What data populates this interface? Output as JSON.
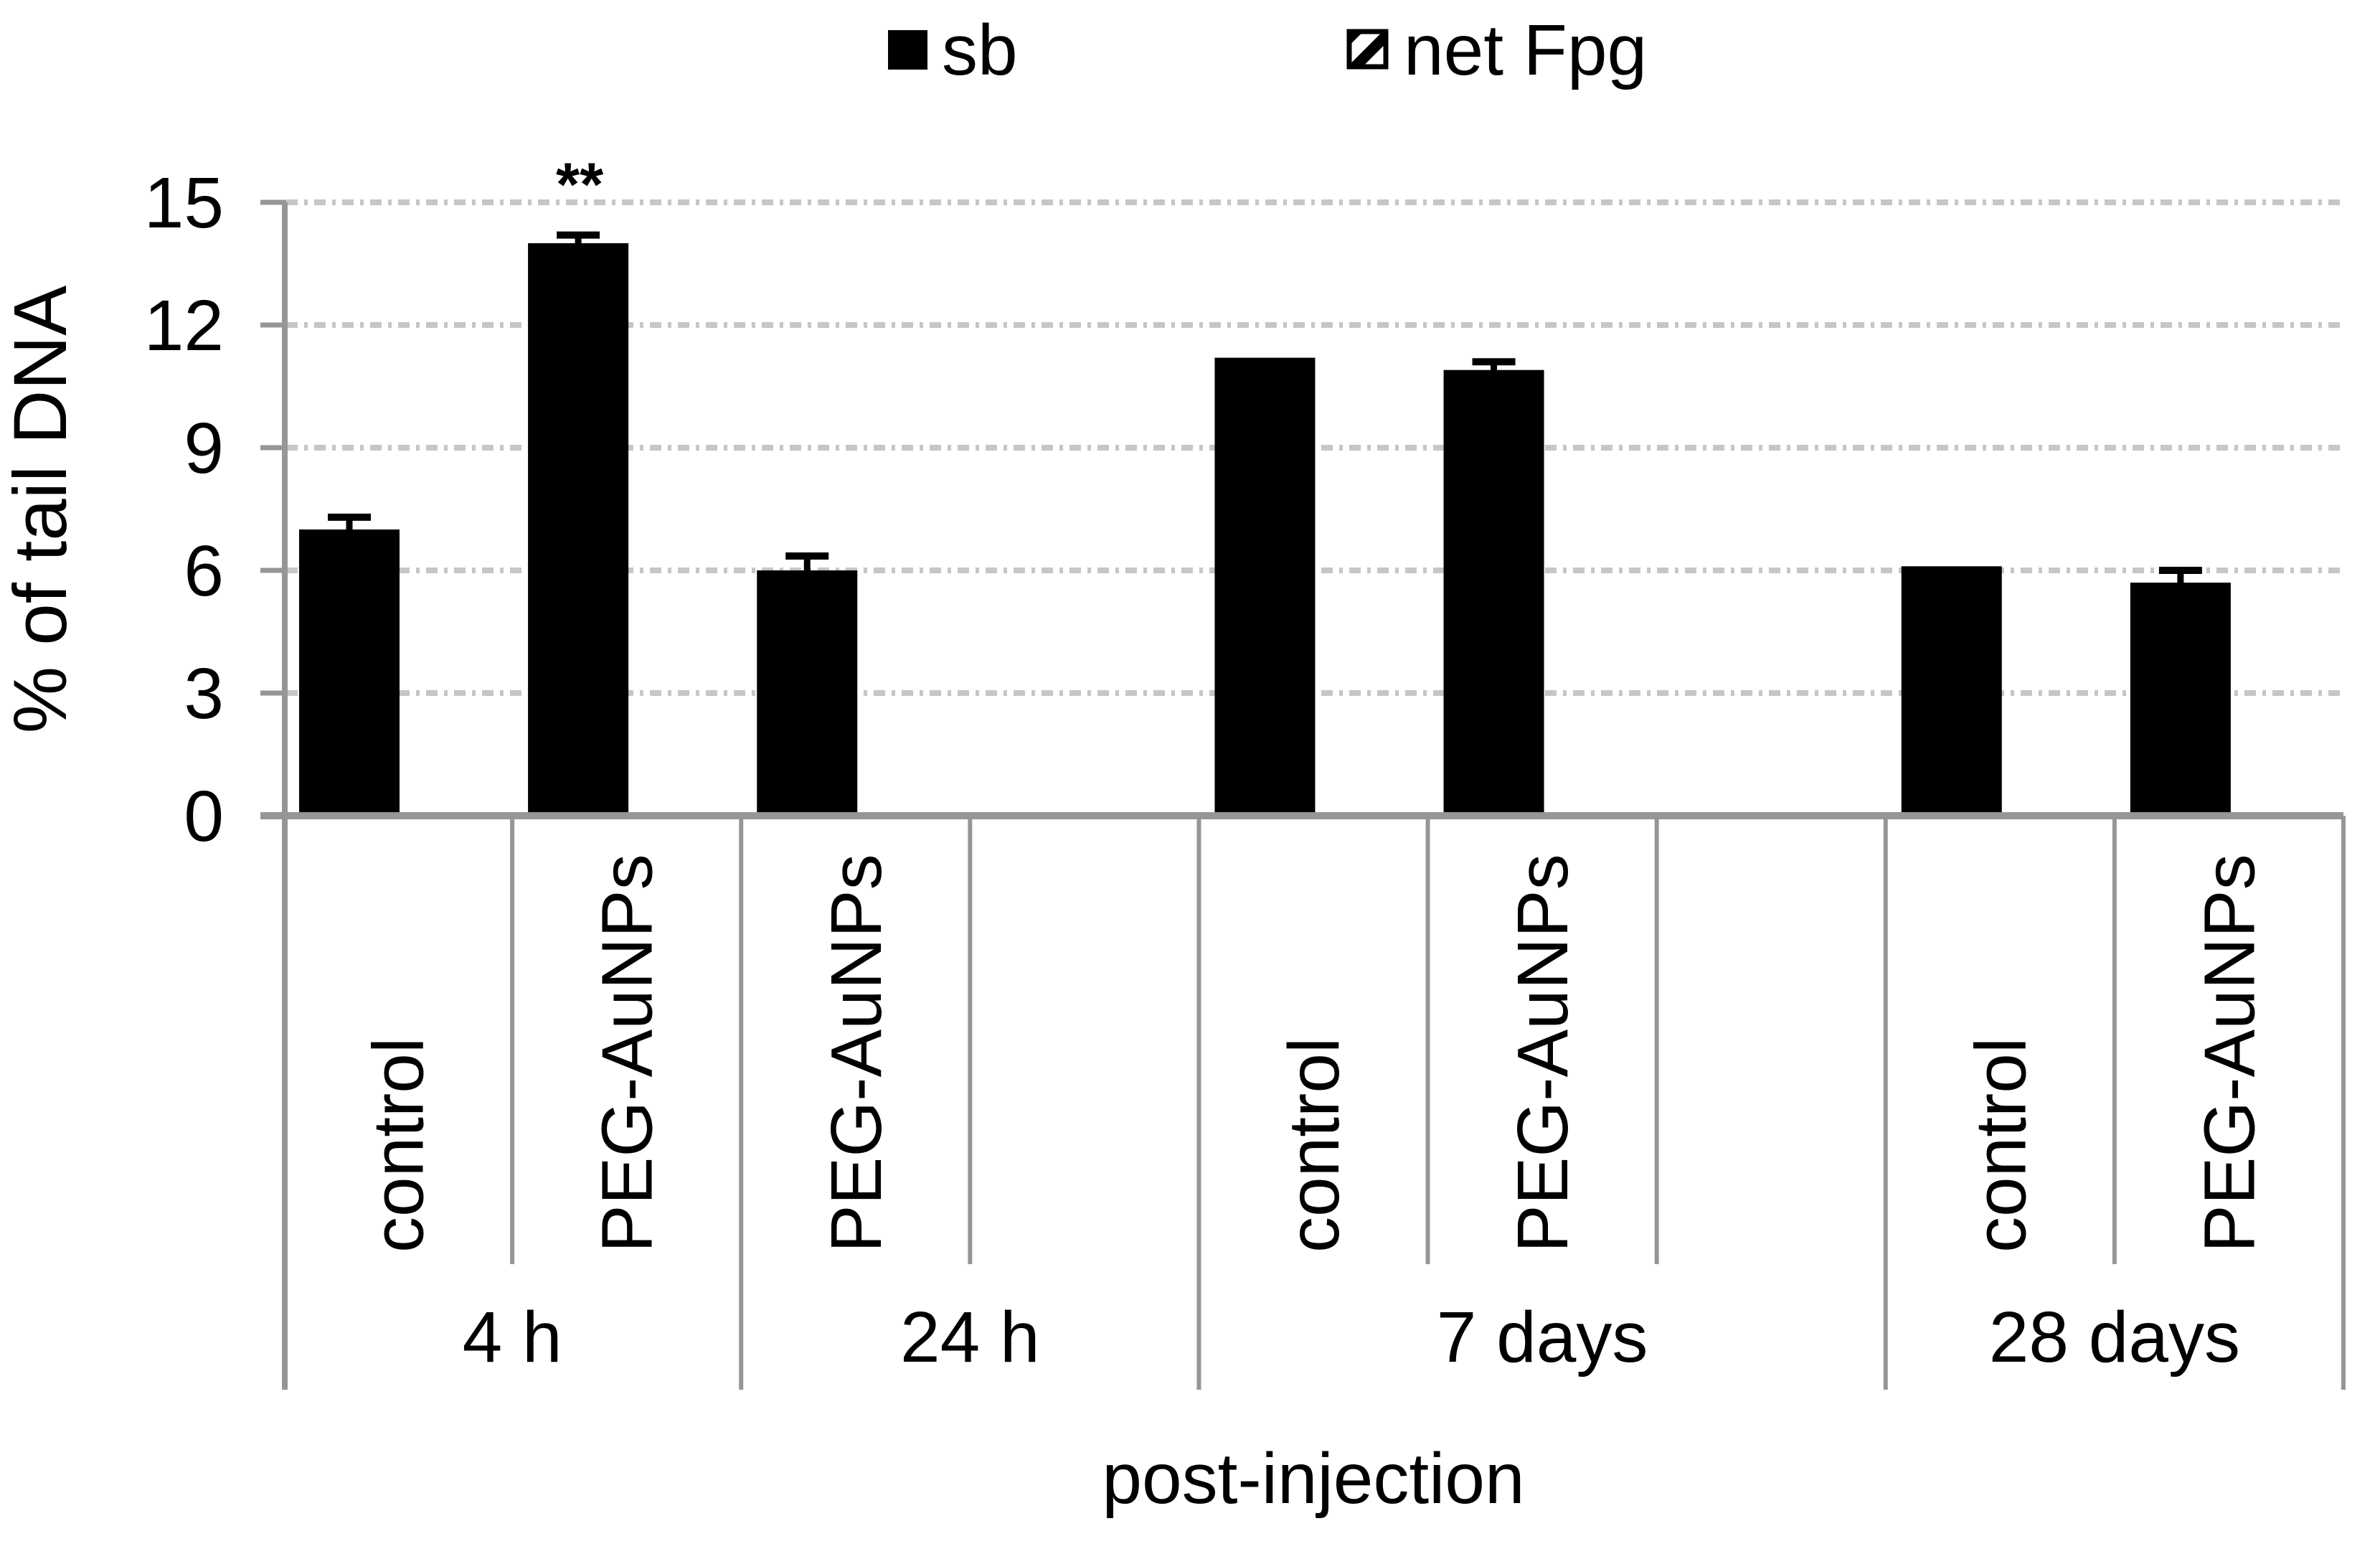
{
  "chart_data": {
    "type": "bar",
    "title": "",
    "ylabel": "% of tail DNA",
    "xlabel": "post-injection",
    "ylim": [
      0,
      15
    ],
    "yticks": [
      0,
      3,
      6,
      9,
      12,
      15
    ],
    "ytick_labels": [
      "0",
      "3",
      "6",
      "9",
      "12",
      "15"
    ],
    "grid": "horizontal dash-dot gridlines at 3,6,9,12,15",
    "legend_position": "top-center",
    "legend": [
      {
        "label": "sb",
        "swatch": "solid-black-square"
      },
      {
        "label": "net Fpg",
        "swatch": "diagonal-hatch-square"
      }
    ],
    "series_note_visible_bars": "sb",
    "groups": [
      {
        "label": "4 h",
        "trailing_empty_slots": 0,
        "bars": [
          {
            "category": "control",
            "value": 7.0,
            "error": 0.3,
            "annotation": ""
          },
          {
            "category": "PEG-AuNPs",
            "value": 14.0,
            "error": 0.2,
            "annotation": "**"
          }
        ]
      },
      {
        "label": "24 h",
        "trailing_empty_slots": 1,
        "bars": [
          {
            "category": "PEG-AuNPs",
            "value": 6.0,
            "error": 0.35,
            "annotation": ""
          }
        ]
      },
      {
        "label": "7 days",
        "trailing_empty_slots": 1,
        "bars": [
          {
            "category": "control",
            "value": 11.2,
            "error": 0,
            "annotation": ""
          },
          {
            "category": "PEG-AuNPs",
            "value": 10.9,
            "error": 0.2,
            "annotation": ""
          }
        ]
      },
      {
        "label": "28 days",
        "trailing_empty_slots": 0,
        "bars": [
          {
            "category": "control",
            "value": 6.1,
            "error": 0,
            "annotation": ""
          },
          {
            "category": "PEG-AuNPs",
            "value": 5.7,
            "error": 0.3,
            "annotation": ""
          }
        ]
      }
    ],
    "colors": {
      "bar_fill": "#000000",
      "axis_line": "#969696",
      "gridline": "#c6c6c6",
      "text": "#000000",
      "background": "#ffffff"
    }
  }
}
